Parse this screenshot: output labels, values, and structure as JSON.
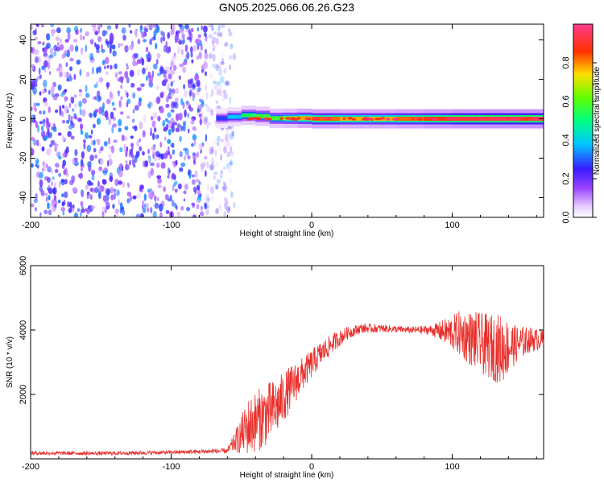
{
  "title": "GN05.2025.066.06.26.G23",
  "chart_data": [
    {
      "type": "heatmap",
      "title": "",
      "xlabel": "Height of straight line (km)",
      "ylabel": "Frequency (Hz)",
      "xlim": [
        -200,
        165
      ],
      "ylim": [
        -50,
        48
      ],
      "x_ticks": [
        -200,
        -100,
        0,
        100
      ],
      "y_ticks": [
        -40,
        -20,
        0,
        20,
        40
      ],
      "noise_region": {
        "x_range": [
          -200,
          -55
        ],
        "frequency_range": [
          -50,
          48
        ],
        "amplitude_range": [
          0.05,
          0.35
        ]
      },
      "signal_trace": [
        {
          "x": -68,
          "frequency": 0.0,
          "amplitude": 0.25
        },
        {
          "x": -60,
          "frequency": 0.5,
          "amplitude": 0.3
        },
        {
          "x": -50,
          "frequency": 1.5,
          "amplitude": 0.45
        },
        {
          "x": -40,
          "frequency": 2.0,
          "amplitude": 0.6
        },
        {
          "x": -30,
          "frequency": 0.5,
          "amplitude": 0.55
        },
        {
          "x": -20,
          "frequency": 0.0,
          "amplitude": 0.6
        },
        {
          "x": -10,
          "frequency": 0.5,
          "amplitude": 0.7
        },
        {
          "x": 0,
          "frequency": 0.0,
          "amplitude": 0.85
        },
        {
          "x": 20,
          "frequency": 0.0,
          "amplitude": 0.8
        },
        {
          "x": 40,
          "frequency": 0.0,
          "amplitude": 0.75
        },
        {
          "x": 60,
          "frequency": 0.0,
          "amplitude": 0.8
        },
        {
          "x": 80,
          "frequency": 0.0,
          "amplitude": 0.85
        },
        {
          "x": 100,
          "frequency": 0.0,
          "amplitude": 0.9
        },
        {
          "x": 120,
          "frequency": 0.0,
          "amplitude": 0.95
        },
        {
          "x": 140,
          "frequency": 0.0,
          "amplitude": 0.95
        },
        {
          "x": 165,
          "frequency": 0.0,
          "amplitude": 0.95
        }
      ],
      "colorbar": {
        "label": "Normalized spectral amplitude",
        "range": [
          0.0,
          1.0
        ],
        "ticks": [
          0.0,
          0.2,
          0.4,
          0.6,
          0.8
        ],
        "tick_labels": [
          "0.0",
          "0.2",
          "0.4",
          "0.6",
          "0.8"
        ],
        "colormap": "rainbow (white → purple → blue → cyan → green → yellow → red → pink)"
      },
      "grid": false
    },
    {
      "type": "line",
      "title": "",
      "xlabel": "Height of straight line (km)",
      "ylabel": "SNR (10 * v/v)",
      "xlim": [
        -200,
        165
      ],
      "ylim": [
        0,
        6000
      ],
      "x_ticks": [
        -200,
        -100,
        0,
        100
      ],
      "y_ticks": [
        2000,
        4000,
        6000
      ],
      "series": [
        {
          "color": "#e8302c",
          "envelope": [
            {
              "x": -200,
              "mean": 180,
              "spread": 60
            },
            {
              "x": -150,
              "mean": 170,
              "spread": 60
            },
            {
              "x": -100,
              "mean": 200,
              "spread": 60
            },
            {
              "x": -60,
              "mean": 250,
              "spread": 80
            },
            {
              "x": -55,
              "mean": 500,
              "spread": 300
            },
            {
              "x": -45,
              "mean": 1000,
              "spread": 900
            },
            {
              "x": -35,
              "mean": 1300,
              "spread": 1000
            },
            {
              "x": -25,
              "mean": 1600,
              "spread": 900
            },
            {
              "x": -15,
              "mean": 2200,
              "spread": 700
            },
            {
              "x": -5,
              "mean": 2700,
              "spread": 500
            },
            {
              "x": 5,
              "mean": 3200,
              "spread": 400
            },
            {
              "x": 15,
              "mean": 3600,
              "spread": 300
            },
            {
              "x": 25,
              "mean": 3900,
              "spread": 200
            },
            {
              "x": 35,
              "mean": 4050,
              "spread": 150
            },
            {
              "x": 50,
              "mean": 4050,
              "spread": 120
            },
            {
              "x": 70,
              "mean": 4000,
              "spread": 100
            },
            {
              "x": 85,
              "mean": 4000,
              "spread": 150
            },
            {
              "x": 95,
              "mean": 3950,
              "spread": 400
            },
            {
              "x": 105,
              "mean": 3900,
              "spread": 700
            },
            {
              "x": 115,
              "mean": 3700,
              "spread": 900
            },
            {
              "x": 125,
              "mean": 3500,
              "spread": 1000
            },
            {
              "x": 135,
              "mean": 3400,
              "spread": 1100
            },
            {
              "x": 145,
              "mean": 3550,
              "spread": 600
            },
            {
              "x": 155,
              "mean": 3700,
              "spread": 400
            },
            {
              "x": 165,
              "mean": 3700,
              "spread": 300
            }
          ]
        }
      ],
      "grid": false
    }
  ]
}
